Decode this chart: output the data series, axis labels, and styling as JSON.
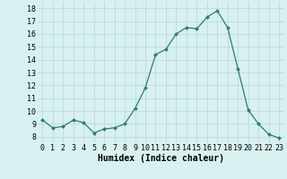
{
  "x": [
    0,
    1,
    2,
    3,
    4,
    5,
    6,
    7,
    8,
    9,
    10,
    11,
    12,
    13,
    14,
    15,
    16,
    17,
    18,
    19,
    20,
    21,
    22,
    23
  ],
  "y": [
    9.3,
    8.7,
    8.8,
    9.3,
    9.1,
    8.3,
    8.6,
    8.7,
    9.0,
    10.2,
    11.8,
    14.4,
    14.8,
    16.0,
    16.5,
    16.4,
    17.3,
    17.8,
    16.5,
    13.3,
    10.1,
    9.0,
    8.2,
    7.9
  ],
  "xlabel": "Humidex (Indice chaleur)",
  "xlim": [
    -0.5,
    23.5
  ],
  "ylim": [
    7.5,
    18.5
  ],
  "yticks": [
    8,
    9,
    10,
    11,
    12,
    13,
    14,
    15,
    16,
    17,
    18
  ],
  "xticks": [
    0,
    1,
    2,
    3,
    4,
    5,
    6,
    7,
    8,
    9,
    10,
    11,
    12,
    13,
    14,
    15,
    16,
    17,
    18,
    19,
    20,
    21,
    22,
    23
  ],
  "line_color": "#2e7d6e",
  "marker_color": "#2e7d6e",
  "bg_color": "#d8f0f0",
  "grid_color": "#b8dcd8",
  "xlabel_fontsize": 7,
  "tick_fontsize": 6
}
